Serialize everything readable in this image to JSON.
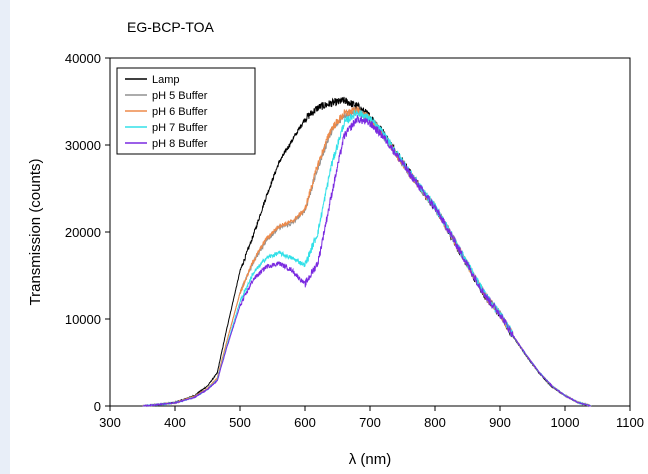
{
  "chart_data": {
    "type": "line",
    "title": "EG-BCP-TOA",
    "xlabel": "λ (nm)",
    "ylabel": "Transmission (counts)",
    "xlim": [
      300,
      1100
    ],
    "ylim": [
      0,
      40000
    ],
    "xticks": [
      "300",
      "400",
      "500",
      "600",
      "700",
      "800",
      "900",
      "1000",
      "1100"
    ],
    "yticks": [
      "0",
      "10000",
      "20000",
      "30000",
      "40000"
    ],
    "grid": false,
    "legend": "top-left",
    "series": [
      {
        "name": "Lamp",
        "color": "#000000",
        "x": [
          350,
          400,
          430,
          450,
          465,
          480,
          500,
          520,
          540,
          560,
          580,
          600,
          620,
          640,
          660,
          680,
          700,
          720,
          740,
          760,
          780,
          800,
          820,
          840,
          860,
          880,
          900,
          920,
          940,
          960,
          980,
          1000,
          1020,
          1040
        ],
        "y": [
          0,
          400,
          1200,
          2300,
          3800,
          9000,
          15500,
          19500,
          24000,
          28000,
          30500,
          33000,
          34300,
          34800,
          35100,
          34500,
          33300,
          31500,
          29200,
          27000,
          24800,
          22800,
          20200,
          17500,
          14800,
          12300,
          10500,
          8000,
          5800,
          3800,
          2200,
          1200,
          400,
          0
        ]
      },
      {
        "name": "pH 5 Buffer",
        "color": "#909090",
        "x": [
          350,
          400,
          430,
          450,
          465,
          480,
          500,
          520,
          540,
          560,
          580,
          600,
          620,
          640,
          660,
          680,
          700,
          720,
          740,
          760,
          780,
          800,
          820,
          840,
          860,
          880,
          900,
          920,
          940,
          960,
          980,
          1000,
          1020,
          1040
        ],
        "y": [
          0,
          350,
          1100,
          2000,
          3200,
          7500,
          13000,
          16500,
          19000,
          20500,
          21000,
          22500,
          27500,
          31500,
          33500,
          33900,
          32900,
          31200,
          29000,
          26800,
          24800,
          22800,
          20300,
          17600,
          14900,
          12400,
          10600,
          8100,
          5900,
          3900,
          2300,
          1200,
          400,
          0
        ]
      },
      {
        "name": "pH 6 Buffer",
        "color": "#ee8a4a",
        "x": [
          350,
          400,
          430,
          450,
          465,
          480,
          500,
          520,
          540,
          560,
          580,
          600,
          620,
          640,
          660,
          680,
          700,
          720,
          740,
          760,
          780,
          800,
          820,
          840,
          860,
          880,
          900,
          920,
          940,
          960,
          980,
          1000,
          1020,
          1040
        ],
        "y": [
          0,
          350,
          1100,
          2000,
          3200,
          7500,
          13000,
          16600,
          19200,
          20700,
          21200,
          22600,
          27800,
          31800,
          33600,
          34000,
          33000,
          31200,
          29000,
          26800,
          24800,
          22800,
          20300,
          17600,
          14900,
          12400,
          10600,
          8100,
          5900,
          3900,
          2300,
          1200,
          400,
          0
        ]
      },
      {
        "name": "pH 7 Buffer",
        "color": "#33e0e8",
        "x": [
          350,
          400,
          430,
          450,
          465,
          480,
          500,
          520,
          540,
          560,
          580,
          600,
          620,
          640,
          660,
          680,
          700,
          720,
          740,
          760,
          780,
          800,
          820,
          840,
          860,
          880,
          900,
          920,
          940,
          960,
          980,
          1000,
          1020,
          1040
        ],
        "y": [
          0,
          350,
          1000,
          1900,
          3000,
          7000,
          12000,
          15200,
          17000,
          17600,
          17000,
          16200,
          20000,
          27500,
          32500,
          33800,
          33000,
          31300,
          29200,
          27000,
          24900,
          22900,
          20400,
          17700,
          15000,
          12500,
          10600,
          8100,
          5900,
          3900,
          2300,
          1200,
          400,
          0
        ]
      },
      {
        "name": "pH 8 Buffer",
        "color": "#7a2ae0",
        "x": [
          350,
          400,
          430,
          450,
          465,
          480,
          500,
          520,
          540,
          560,
          580,
          600,
          620,
          640,
          660,
          680,
          700,
          720,
          740,
          760,
          780,
          800,
          820,
          840,
          860,
          880,
          900,
          920,
          940,
          960,
          980,
          1000,
          1020,
          1040
        ],
        "y": [
          0,
          350,
          1000,
          1900,
          2900,
          6800,
          11500,
          14500,
          16000,
          16400,
          15600,
          14000,
          16500,
          24000,
          31000,
          33000,
          32500,
          31000,
          29000,
          26800,
          24800,
          22800,
          20300,
          17600,
          14900,
          12400,
          10600,
          8100,
          5900,
          3900,
          2300,
          1200,
          400,
          0
        ]
      }
    ]
  }
}
